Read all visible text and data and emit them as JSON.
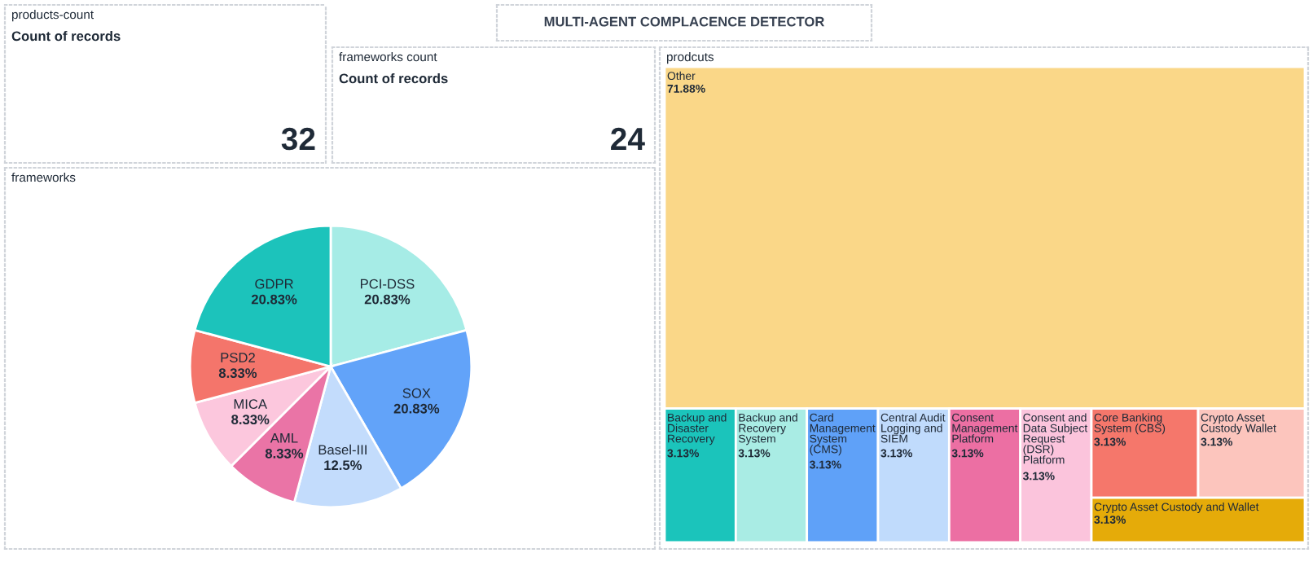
{
  "chart_data": [
    {
      "type": "other",
      "title": "products-count",
      "subtitle": "Count of records",
      "values": [
        32
      ],
      "data_labels": true
    },
    {
      "type": "other",
      "title": "MULTI-AGENT COMPLACENCE DETECTOR"
    },
    {
      "type": "other",
      "title": "frameworks count",
      "subtitle": "Count of records",
      "values": [
        24
      ],
      "data_labels": true
    },
    {
      "type": "pie",
      "title": "frameworks",
      "categories": [
        "PCI-DSS",
        "SOX",
        "Basel-III",
        "AML",
        "MICA",
        "PSD2",
        "GDPR"
      ],
      "values": [
        20.83,
        20.83,
        12.5,
        8.33,
        8.33,
        8.33,
        20.83
      ],
      "colors": [
        "#a6ece6",
        "#62a3f9",
        "#c3dcfc",
        "#ea74a6",
        "#fcc7dd",
        "#f4756b",
        "#1cc3bb"
      ],
      "value_labels": [
        "20.83%",
        "20.83%",
        "12.5%",
        "8.33%",
        "8.33%",
        "8.33%",
        "20.83%"
      ]
    },
    {
      "type": "other",
      "title": "prodcuts",
      "categories": [
        "Other",
        "Backup and Disaster Recovery",
        "Backup and Recovery System",
        "Card Management System (CMS)",
        "Central Audit Logging and SIEM",
        "Consent Management Platform",
        "Consent and Data Subject Request (DSR) Platform",
        "Core Banking System (CBS)",
        "Crypto Asset Custody Wallet",
        "Crypto Asset Custody and Wallet"
      ],
      "values": [
        71.88,
        3.13,
        3.13,
        3.13,
        3.13,
        3.13,
        3.13,
        3.13,
        3.13,
        3.13
      ],
      "colors": [
        "#fad788",
        "#1bc4bb",
        "#a9ece4",
        "#5fa1f8",
        "#c0dbfc",
        "#ec6fa3",
        "#fbc4dc",
        "#f5776b",
        "#fcc5bd",
        "#e5ab09"
      ],
      "value_labels": [
        "71.88%",
        "3.13%",
        "3.13%",
        "3.13%",
        "3.13%",
        "3.13%",
        "3.13%",
        "3.13%",
        "3.13%",
        "3.13%"
      ]
    }
  ]
}
